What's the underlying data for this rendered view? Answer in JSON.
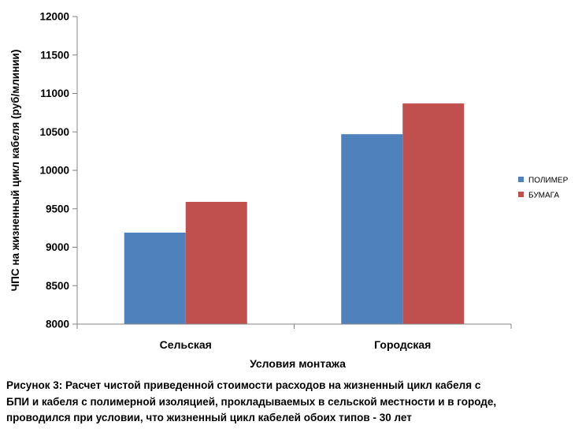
{
  "chart_data": {
    "type": "bar",
    "title": "",
    "xlabel": "Условия монтажа",
    "ylabel": "ЧПС на жизненный цикл кабеля (руб/млинии)",
    "categories": [
      "Сельская",
      "Городская"
    ],
    "series": [
      {
        "name": "ПОЛИМЕР",
        "color": "#4f81bd",
        "values": [
          9190,
          10470
        ]
      },
      {
        "name": "БУМАГА",
        "color": "#c0504d",
        "values": [
          9590,
          10870
        ]
      }
    ],
    "ylim": [
      8000,
      12000
    ],
    "yticks": [
      "8000",
      "8500",
      "9000",
      "9500",
      "10000",
      "10500",
      "11000",
      "11500",
      "12000"
    ],
    "grid": false,
    "legend": "right"
  },
  "caption": {
    "lines": [
      "Рисунок 3:  Расчет  чистой приведенной стоимости расходов на жизненный цикл кабеля с",
      "БПИ и кабеля с полимерной изоляцией, прокладываемых в сельской местности и в городе,",
      "проводился при условии, что жизненный цикл кабелей обоих типов - 30 лет"
    ]
  }
}
